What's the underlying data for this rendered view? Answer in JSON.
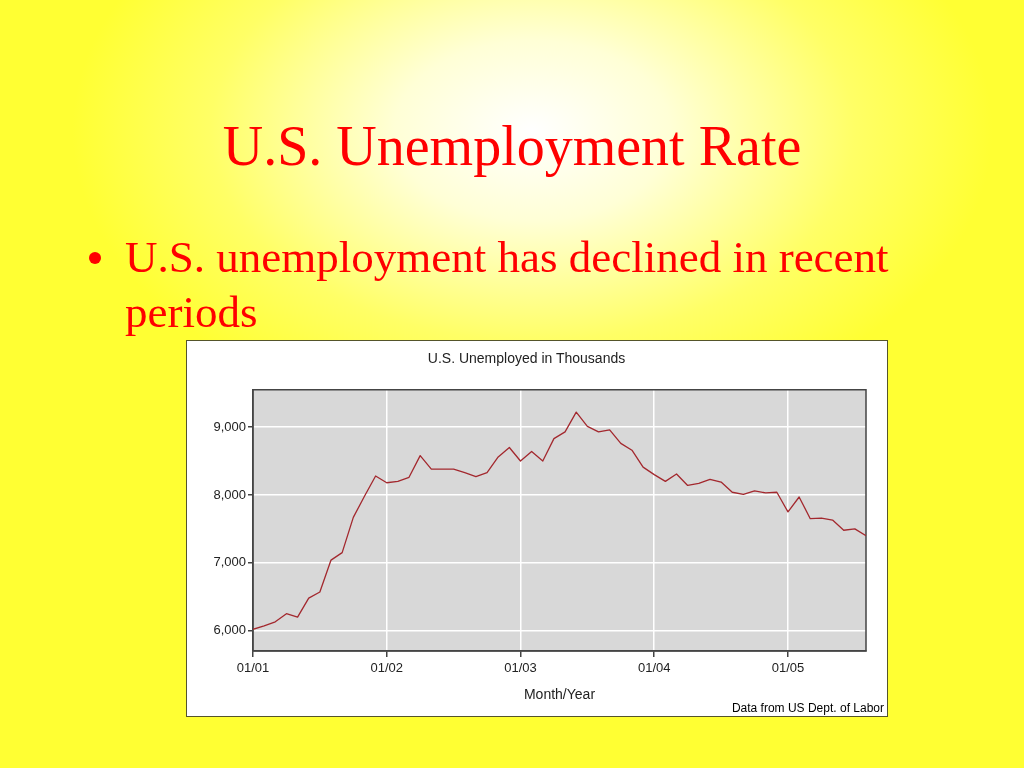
{
  "chart_data": {
    "type": "line",
    "title": "U.S. Unemployment Rate",
    "subtitle": "U.S. Unemployed in Thousands",
    "xlabel": "Month/Year",
    "annotations": [
      "U.S. unemployment has declined in recent periods",
      "Data from US Dept. of Labor"
    ],
    "x": [
      "2001-01",
      "2001-02",
      "2001-03",
      "2001-04",
      "2001-05",
      "2001-06",
      "2001-07",
      "2001-08",
      "2001-09",
      "2001-10",
      "2001-11",
      "2001-12",
      "2002-01",
      "2002-02",
      "2002-03",
      "2002-04",
      "2002-05",
      "2002-06",
      "2002-07",
      "2002-08",
      "2002-09",
      "2002-10",
      "2002-11",
      "2002-12",
      "2003-01",
      "2003-02",
      "2003-03",
      "2003-04",
      "2003-05",
      "2003-06",
      "2003-07",
      "2003-08",
      "2003-09",
      "2003-10",
      "2003-11",
      "2003-12",
      "2004-01",
      "2004-02",
      "2004-03",
      "2004-04",
      "2004-05",
      "2004-06",
      "2004-07",
      "2004-08",
      "2004-09",
      "2004-10",
      "2004-11",
      "2004-12",
      "2005-01",
      "2005-02",
      "2005-03",
      "2005-04",
      "2005-05",
      "2005-06",
      "2005-07",
      "2005-08"
    ],
    "series": [
      {
        "color": "#a3282e",
        "values": [
          6020,
          6070,
          6130,
          6250,
          6200,
          6480,
          6570,
          7040,
          7150,
          7670,
          7980,
          8280,
          8180,
          8200,
          8260,
          8580,
          8380,
          8380,
          8380,
          8330,
          8270,
          8330,
          8560,
          8700,
          8500,
          8640,
          8500,
          8830,
          8930,
          9220,
          9010,
          8930,
          8960,
          8760,
          8660,
          8410,
          8300,
          8200,
          8310,
          8140,
          8170,
          8230,
          8190,
          8040,
          8010,
          8060,
          8030,
          8040,
          7750,
          7970,
          7650,
          7660,
          7630,
          7480,
          7500,
          7400
        ]
      }
    ],
    "xlim": [
      "2001-01",
      "2005-08"
    ],
    "xticks": [
      {
        "value": "2001-01",
        "label": "01/01"
      },
      {
        "value": "2002-01",
        "label": "01/02"
      },
      {
        "value": "2003-01",
        "label": "01/03"
      },
      {
        "value": "2004-01",
        "label": "01/04"
      },
      {
        "value": "2005-01",
        "label": "01/05"
      }
    ],
    "ylim": [
      5700,
      9550
    ],
    "yticks": [
      {
        "value": 6000,
        "label": "6,000"
      },
      {
        "value": 7000,
        "label": "7,000"
      },
      {
        "value": 8000,
        "label": "8,000"
      },
      {
        "value": 9000,
        "label": "9,000"
      }
    ],
    "grid": true
  }
}
